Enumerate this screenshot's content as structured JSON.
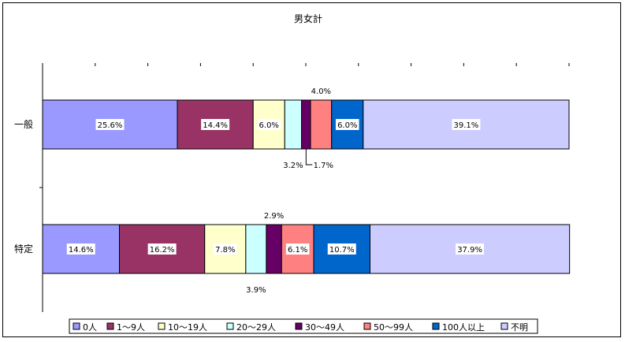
{
  "chart_data": {
    "type": "bar",
    "orientation": "horizontal",
    "stacked": "percent",
    "title": "男女計",
    "categories": [
      "一般",
      "特定"
    ],
    "series": [
      {
        "name": "0人",
        "values": [
          25.6,
          14.6
        ],
        "labels": [
          "25.6%",
          "14.6%"
        ],
        "color": "#9999ff"
      },
      {
        "name": "1～9人",
        "values": [
          14.4,
          16.2
        ],
        "labels": [
          "14.4%",
          "16.2%"
        ],
        "color": "#993366"
      },
      {
        "name": "10～19人",
        "values": [
          6.0,
          7.8
        ],
        "labels": [
          "6.0%",
          "7.8%"
        ],
        "color": "#ffffcc"
      },
      {
        "name": "20～29人",
        "values": [
          3.2,
          3.9
        ],
        "labels": [
          "3.2%",
          "3.9%"
        ],
        "color": "#ccffff"
      },
      {
        "name": "30～49人",
        "values": [
          1.7,
          2.9
        ],
        "labels": [
          "1.7%",
          "2.9%"
        ],
        "color": "#660066"
      },
      {
        "name": "50～99人",
        "values": [
          4.0,
          6.1
        ],
        "labels": [
          "4.0%",
          "6.1%"
        ],
        "color": "#ff8080"
      },
      {
        "name": "100人以上",
        "values": [
          6.0,
          10.7
        ],
        "labels": [
          "6.0%",
          "10.7%"
        ],
        "color": "#0066cc"
      },
      {
        "name": "不明",
        "values": [
          39.1,
          37.9
        ],
        "labels": [
          "39.1%",
          "37.9%"
        ],
        "color": "#ccccff"
      }
    ],
    "xlim": [
      0,
      100
    ],
    "grid": false,
    "legend": "bottom"
  }
}
